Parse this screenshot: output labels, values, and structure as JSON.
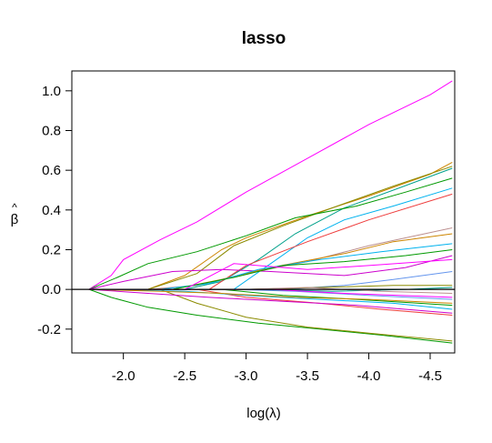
{
  "chart_data": {
    "type": "line",
    "title": "lasso",
    "xlabel": "log(λ)",
    "ylabel": "β",
    "ylabel_hat": "^",
    "x_reversed": true,
    "xlim": [
      -1.58,
      -4.7
    ],
    "ylim": [
      -0.32,
      1.1
    ],
    "grid": false,
    "x_ticks": [
      {
        "value": -2.0,
        "label": "-2.0"
      },
      {
        "value": -2.5,
        "label": "-2.5"
      },
      {
        "value": -3.0,
        "label": "-3.0"
      },
      {
        "value": -3.5,
        "label": "-3.5"
      },
      {
        "value": -4.0,
        "label": "-4.0"
      },
      {
        "value": -4.5,
        "label": "-4.5"
      }
    ],
    "y_ticks": [
      {
        "value": 1.0,
        "label": "1.0"
      },
      {
        "value": 0.8,
        "label": "0.8"
      },
      {
        "value": 0.6,
        "label": "0.6"
      },
      {
        "value": 0.4,
        "label": "0.4"
      },
      {
        "value": 0.2,
        "label": "0.2"
      },
      {
        "value": 0.0,
        "label": "0.0"
      },
      {
        "value": -0.2,
        "label": "-0.2"
      }
    ],
    "reference_line": {
      "y": 0,
      "color": "#000000"
    },
    "series": [
      {
        "color": "#ff00ff",
        "x": [
          -1.72,
          -1.9,
          -2.0,
          -2.3,
          -2.6,
          -3.0,
          -3.5,
          -4.0,
          -4.5,
          -4.68
        ],
        "values": [
          0,
          0.07,
          0.15,
          0.25,
          0.34,
          0.49,
          0.66,
          0.83,
          0.98,
          1.05
        ]
      },
      {
        "color": "#cd8500",
        "x": [
          -1.72,
          -2.2,
          -2.5,
          -2.8,
          -3.0,
          -3.5,
          -4.0,
          -4.5,
          -4.68
        ],
        "values": [
          0,
          0,
          0.07,
          0.2,
          0.26,
          0.37,
          0.47,
          0.58,
          0.64
        ]
      },
      {
        "color": "#8b8b00",
        "x": [
          -1.72,
          -2.2,
          -2.6,
          -2.9,
          -3.3,
          -3.7,
          -4.2,
          -4.68
        ],
        "values": [
          0,
          0,
          0.08,
          0.22,
          0.32,
          0.41,
          0.52,
          0.62
        ]
      },
      {
        "color": "#00a08a",
        "x": [
          -1.72,
          -2.5,
          -2.8,
          -3.1,
          -3.4,
          -3.8,
          -4.2,
          -4.68
        ],
        "values": [
          0,
          0,
          0.04,
          0.15,
          0.28,
          0.41,
          0.5,
          0.61
        ]
      },
      {
        "color": "#009900",
        "x": [
          -1.72,
          -1.95,
          -2.2,
          -2.6,
          -3.0,
          -3.4,
          -3.9,
          -4.3,
          -4.68
        ],
        "values": [
          0,
          0.06,
          0.13,
          0.19,
          0.27,
          0.36,
          0.42,
          0.49,
          0.56
        ]
      },
      {
        "color": "#00b2ee",
        "x": [
          -1.72,
          -2.9,
          -3.2,
          -3.5,
          -3.8,
          -4.2,
          -4.68
        ],
        "values": [
          0,
          0,
          0.13,
          0.26,
          0.35,
          0.42,
          0.51
        ]
      },
      {
        "color": "#ee3b3b",
        "x": [
          -1.72,
          -2.7,
          -3.0,
          -3.5,
          -4.0,
          -4.68
        ],
        "values": [
          0,
          0,
          0.12,
          0.24,
          0.35,
          0.48
        ]
      },
      {
        "color": "#cd00cd",
        "x": [
          -1.72,
          -2.0,
          -2.4,
          -2.8,
          -3.2,
          -3.8,
          -4.3,
          -4.68
        ],
        "values": [
          0,
          0.04,
          0.09,
          0.1,
          0.09,
          0.07,
          0.11,
          0.17
        ]
      },
      {
        "color": "#bc8f8f",
        "x": [
          -1.72,
          -2.2,
          -2.6,
          -3.0,
          -3.5,
          -4.0,
          -4.68
        ],
        "values": [
          0,
          0,
          0.02,
          0.08,
          0.14,
          0.22,
          0.31
        ]
      },
      {
        "color": "#cd8500",
        "x": [
          -1.72,
          -2.4,
          -2.8,
          -3.2,
          -3.8,
          -4.2,
          -4.68
        ],
        "values": [
          0,
          0,
          0.05,
          0.11,
          0.18,
          0.24,
          0.28
        ]
      },
      {
        "color": "#00b2ee",
        "x": [
          -1.72,
          -2.3,
          -2.7,
          -3.1,
          -3.6,
          -4.1,
          -4.68
        ],
        "values": [
          0,
          0,
          0.03,
          0.1,
          0.15,
          0.19,
          0.23
        ]
      },
      {
        "color": "#009900",
        "x": [
          -1.72,
          -2.4,
          -2.9,
          -3.3,
          -3.8,
          -4.3,
          -4.68
        ],
        "values": [
          0,
          0,
          0.06,
          0.12,
          0.14,
          0.17,
          0.2
        ]
      },
      {
        "color": "#ff00ff",
        "x": [
          -1.72,
          -2.5,
          -2.9,
          -3.5,
          -4.0,
          -4.68
        ],
        "values": [
          0,
          0,
          0.13,
          0.1,
          0.12,
          0.15
        ]
      },
      {
        "color": "#6495ed",
        "x": [
          -1.72,
          -3.3,
          -3.8,
          -4.2,
          -4.68
        ],
        "values": [
          0,
          0,
          0.02,
          0.05,
          0.09
        ]
      },
      {
        "color": "#009900",
        "x": [
          -1.72,
          -1.9,
          -2.2,
          -2.6,
          -3.1,
          -3.6,
          -4.1,
          -4.68
        ],
        "values": [
          0,
          -0.04,
          -0.09,
          -0.13,
          -0.17,
          -0.2,
          -0.23,
          -0.27
        ]
      },
      {
        "color": "#8b8b00",
        "x": [
          -1.72,
          -2.3,
          -2.6,
          -3.0,
          -3.5,
          -4.0,
          -4.68
        ],
        "values": [
          0,
          0,
          -0.07,
          -0.14,
          -0.19,
          -0.22,
          -0.26
        ]
      },
      {
        "color": "#ee3b3b",
        "x": [
          -1.72,
          -2.6,
          -3.0,
          -3.6,
          -4.1,
          -4.68
        ],
        "values": [
          0,
          0,
          -0.04,
          -0.07,
          -0.1,
          -0.13
        ]
      },
      {
        "color": "#cd00cd",
        "x": [
          -1.72,
          -2.2,
          -2.7,
          -3.3,
          -3.9,
          -4.68
        ],
        "values": [
          0,
          -0.02,
          -0.04,
          -0.06,
          -0.08,
          -0.12
        ]
      },
      {
        "color": "#00b2ee",
        "x": [
          -1.72,
          -2.5,
          -3.0,
          -3.6,
          -4.2,
          -4.68
        ],
        "values": [
          0,
          -0.01,
          -0.03,
          -0.05,
          -0.07,
          -0.1
        ]
      },
      {
        "color": "#009900",
        "x": [
          -1.72,
          -2.8,
          -3.3,
          -3.9,
          -4.68
        ],
        "values": [
          0,
          0,
          -0.03,
          -0.05,
          -0.08
        ]
      },
      {
        "color": "#cd8500",
        "x": [
          -1.72,
          -2.3,
          -2.8,
          -3.4,
          -4.0,
          -4.68
        ],
        "values": [
          0,
          -0.01,
          -0.02,
          -0.04,
          -0.05,
          -0.07
        ]
      },
      {
        "color": "#6495ed",
        "x": [
          -1.72,
          -2.9,
          -3.4,
          -4.0,
          -4.68
        ],
        "values": [
          0,
          0,
          -0.01,
          -0.03,
          -0.05
        ]
      },
      {
        "color": "#8b8b00",
        "x": [
          -1.72,
          -3.0,
          -3.6,
          -4.2,
          -4.68
        ],
        "values": [
          0,
          0,
          0.01,
          0.02,
          0.02
        ]
      },
      {
        "color": "#00a08a",
        "x": [
          -1.72,
          -3.1,
          -3.7,
          -4.3,
          -4.68
        ],
        "values": [
          0,
          0,
          -0.01,
          0.0,
          0.01
        ]
      },
      {
        "color": "#ff00ff",
        "x": [
          -1.72,
          -3.2,
          -3.8,
          -4.68
        ],
        "values": [
          0,
          0,
          -0.02,
          -0.04
        ]
      },
      {
        "color": "#bc8f8f",
        "x": [
          -1.72,
          -3.0,
          -3.5,
          -4.1,
          -4.68
        ],
        "values": [
          0,
          0,
          0.01,
          -0.01,
          -0.02
        ]
      }
    ]
  }
}
